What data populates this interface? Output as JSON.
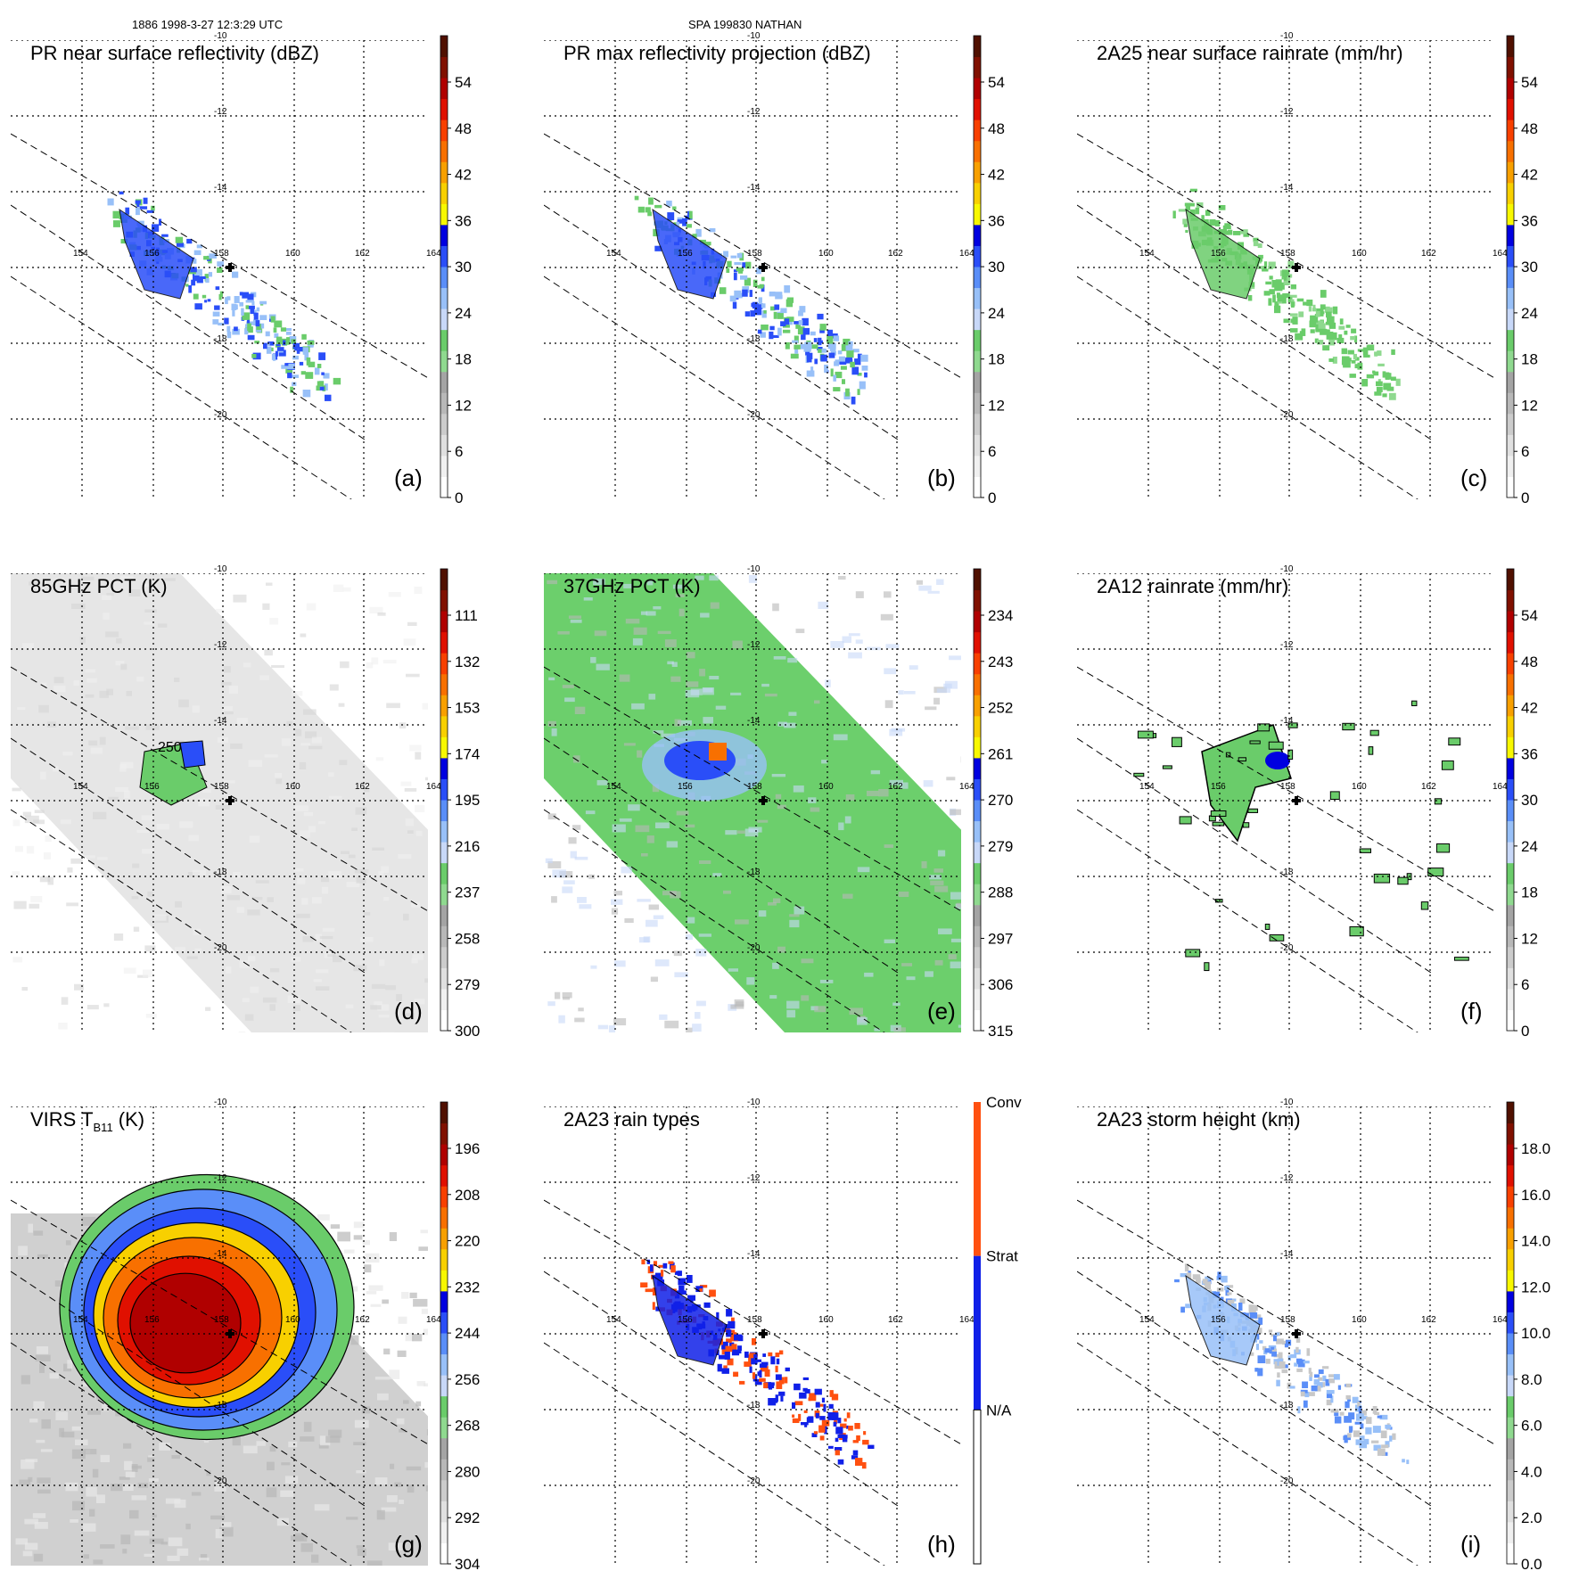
{
  "header": {
    "left": "1886 1998-3-27 12:3:29 UTC",
    "center": "SPA 199830 NATHAN"
  },
  "colors": {
    "scale": [
      "#ffffff",
      "#f0f0f0",
      "#e0e0e0",
      "#cccccc",
      "#b8b8b8",
      "#a4a4a4",
      "#8fd98f",
      "#6acc6a",
      "#c8d8f8",
      "#98c0f8",
      "#5a8ef8",
      "#2a4ef8",
      "#0000e0",
      "#f8f800",
      "#f8d000",
      "#f8a000",
      "#f87000",
      "#f84000",
      "#e01000",
      "#b00000",
      "#801000",
      "#501000"
    ],
    "contour": "#000000",
    "conv": "#ff5010",
    "strat": "#1020e8"
  },
  "chart_data": [
    {
      "panel": "a",
      "type": "heatmap",
      "title": "PR near surface reflectivity (dBZ)",
      "field": "swath",
      "colorbar_ticks": [
        "54",
        "48",
        "42",
        "36",
        "30",
        "24",
        "18",
        "12",
        "6",
        "0"
      ],
      "lon_ticks": [
        "154",
        "156",
        "158",
        "160",
        "162",
        "164"
      ],
      "lat_ticks": [
        "-10",
        "-12",
        "-14",
        "-18",
        "-20"
      ],
      "annotations": []
    },
    {
      "panel": "b",
      "type": "heatmap",
      "title": "PR max reflectivity projection (dBZ)",
      "field": "swath",
      "colorbar_ticks": [
        "54",
        "48",
        "42",
        "36",
        "30",
        "24",
        "18",
        "12",
        "6",
        "0"
      ],
      "lon_ticks": [
        "154",
        "156",
        "158",
        "160",
        "162",
        "164"
      ],
      "lat_ticks": [
        "-10",
        "-12",
        "-14",
        "-18",
        "-20"
      ],
      "annotations": []
    },
    {
      "panel": "c",
      "type": "heatmap",
      "title": "2A25 near surface rainrate (mm/hr)",
      "field": "swath",
      "colorbar_ticks": [
        "54",
        "48",
        "42",
        "36",
        "30",
        "24",
        "18",
        "12",
        "6",
        "0"
      ],
      "lon_ticks": [
        "154",
        "156",
        "158",
        "160",
        "162",
        "164"
      ],
      "lat_ticks": [
        "-10",
        "-12",
        "-14",
        "-18",
        "-20"
      ],
      "annotations": []
    },
    {
      "panel": "d",
      "type": "heatmap",
      "title": "85GHz PCT (K)",
      "field": "wide-gray",
      "colorbar_ticks": [
        "111",
        "132",
        "153",
        "174",
        "195",
        "216",
        "237",
        "258",
        "279",
        "300"
      ],
      "lon_ticks": [
        "154",
        "156",
        "158",
        "160",
        "162",
        "164"
      ],
      "lat_ticks": [
        "-10",
        "-12",
        "-14",
        "-18",
        "-20"
      ],
      "annotations": [
        "250"
      ]
    },
    {
      "panel": "e",
      "type": "heatmap",
      "title": "37GHz PCT (K)",
      "field": "wide-green",
      "colorbar_ticks": [
        "234",
        "243",
        "252",
        "261",
        "270",
        "279",
        "288",
        "297",
        "306",
        "315"
      ],
      "lon_ticks": [
        "154",
        "156",
        "158",
        "160",
        "162",
        "164"
      ],
      "lat_ticks": [
        "-10",
        "-12",
        "-14",
        "-18",
        "-20"
      ],
      "annotations": []
    },
    {
      "panel": "f",
      "type": "heatmap",
      "title": "2A12 rainrate (mm/hr)",
      "field": "scatter",
      "colorbar_ticks": [
        "54",
        "48",
        "42",
        "36",
        "30",
        "24",
        "18",
        "12",
        "6",
        "0"
      ],
      "lon_ticks": [
        "154",
        "156",
        "158",
        "160",
        "162",
        "164"
      ],
      "lat_ticks": [
        "-10",
        "-12",
        "-14",
        "-18",
        "-20"
      ],
      "annotations": []
    },
    {
      "panel": "g",
      "type": "heatmap",
      "title": "VIRS T",
      "title_sub": "B11",
      "title_tail": " (K)",
      "field": "storm",
      "colorbar_ticks": [
        "196",
        "208",
        "220",
        "232",
        "244",
        "256",
        "268",
        "280",
        "292",
        "304"
      ],
      "lon_ticks": [
        "154",
        "156",
        "158",
        "160",
        "162",
        "164"
      ],
      "lat_ticks": [
        "-10",
        "-12",
        "-14",
        "-18",
        "-20"
      ],
      "annotations": []
    },
    {
      "panel": "h",
      "type": "heatmap",
      "title": "2A23 rain types",
      "field": "types",
      "categories": [
        "Conv",
        "Strat",
        "N/A"
      ],
      "colorbar_ticks": [
        "Conv",
        "Strat",
        "N/A"
      ],
      "lon_ticks": [
        "154",
        "156",
        "158",
        "160",
        "162",
        "164"
      ],
      "lat_ticks": [
        "-10",
        "-12",
        "-14",
        "-18",
        "-20"
      ],
      "annotations": []
    },
    {
      "panel": "i",
      "type": "heatmap",
      "title": "2A23 storm height (km)",
      "field": "swath",
      "colorbar_ticks": [
        "18.0",
        "16.0",
        "14.0",
        "12.0",
        "10.0",
        "8.0",
        "6.0",
        "4.0",
        "2.0",
        "0.0"
      ],
      "lon_ticks": [
        "154",
        "156",
        "158",
        "160",
        "162",
        "164"
      ],
      "lat_ticks": [
        "-10",
        "-12",
        "-14",
        "-18",
        "-20"
      ],
      "annotations": []
    }
  ]
}
